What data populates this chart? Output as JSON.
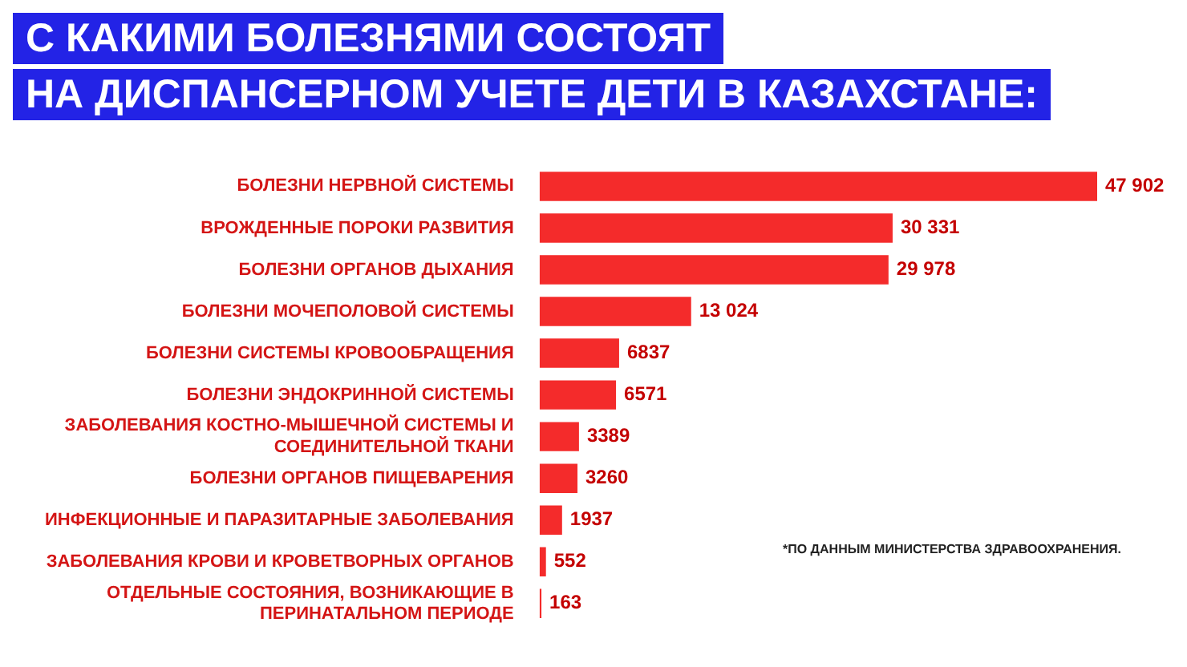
{
  "chart_data": {
    "type": "bar",
    "orientation": "horizontal",
    "title": "С КАКИМИ БОЛЕЗНЯМИ СОСТОЯТ\nНА ДИСПАНСЕРНОМ УЧЕТЕ ДЕТИ В КАЗАХСТАНЕ:",
    "categories": [
      "БОЛЕЗНИ НЕРВНОЙ СИСТЕМЫ",
      "ВРОЖДЕННЫЕ ПОРОКИ РАЗВИТИЯ",
      "БОЛЕЗНИ ОРГАНОВ ДЫХАНИЯ",
      "БОЛЕЗНИ МОЧЕПОЛОВОЙ СИСТЕМЫ",
      "БОЛЕЗНИ СИСТЕМЫ КРОВООБРАЩЕНИЯ",
      "БОЛЕЗНИ ЭНДОКРИННОЙ СИСТЕМЫ",
      "ЗАБОЛЕВАНИЯ КОСТНО-МЫШЕЧНОЙ СИСТЕМЫ И СОЕДИНИТЕЛЬНОЙ ТКАНИ",
      "БОЛЕЗНИ ОРГАНОВ ПИЩЕВАРЕНИЯ",
      "ИНФЕКЦИОННЫЕ И ПАРАЗИТАРНЫЕ ЗАБОЛЕВАНИЯ",
      "ЗАБОЛЕВАНИЯ КРОВИ И КРОВЕТВОРНЫХ ОРГАНОВ",
      "ОТДЕЛЬНЫЕ СОСТОЯНИЯ, ВОЗНИКАЮЩИЕ В ПЕРИНАТАЛЬНОМ ПЕРИОДЕ"
    ],
    "values": [
      47902,
      30331,
      29978,
      13024,
      6837,
      6571,
      3389,
      3260,
      1937,
      552,
      163
    ],
    "value_labels": [
      "47 902",
      "30 331",
      "29 978",
      "13 024",
      "6837",
      "6571",
      "3389",
      "3260",
      "1937",
      "552",
      "163"
    ],
    "color": "#f42b2b",
    "annotations": [
      "*ПО ДАННЫМ МИНИСТЕРСТВА ЗДРАВООХРАНЕНИЯ."
    ],
    "legend": false
  }
}
